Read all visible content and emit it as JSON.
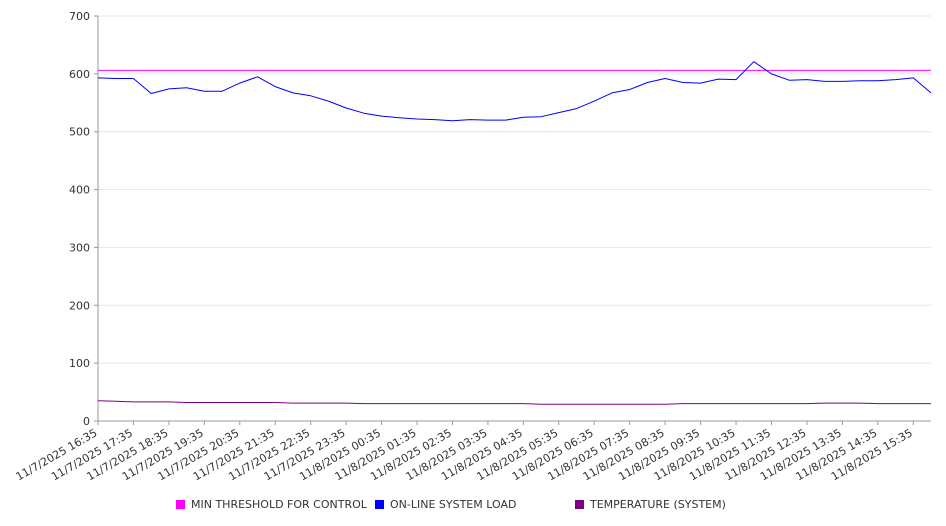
{
  "chart_data": {
    "type": "line",
    "grid": true,
    "legend_placement": "bottom",
    "ylim": [
      0,
      700
    ],
    "y_ticks": [
      "0",
      "100",
      "200",
      "300",
      "400",
      "500",
      "600",
      "700"
    ],
    "x_ticks": [
      "11/7/2025 16:35",
      "11/7/2025 17:35",
      "11/7/2025 18:35",
      "11/7/2025 19:35",
      "11/7/2025 20:35",
      "11/7/2025 21:35",
      "11/7/2025 22:35",
      "11/7/2025 23:35",
      "11/8/2025 00:35",
      "11/8/2025 01:35",
      "11/8/2025 02:35",
      "11/8/2025 03:35",
      "11/8/2025 04:35",
      "11/8/2025 05:35",
      "11/8/2025 06:35",
      "11/8/2025 07:35",
      "11/8/2025 08:35",
      "11/8/2025 09:35",
      "11/8/2025 10:35",
      "11/8/2025 11:35",
      "11/8/2025 12:35",
      "11/8/2025 13:35",
      "11/8/2025 14:35",
      "11/8/2025 15:35"
    ],
    "x": [
      "11/7/2025 16:35",
      "11/7/2025 17:05",
      "11/7/2025 17:35",
      "11/7/2025 18:05",
      "11/7/2025 18:35",
      "11/7/2025 19:05",
      "11/7/2025 19:35",
      "11/7/2025 20:05",
      "11/7/2025 20:35",
      "11/7/2025 21:05",
      "11/7/2025 21:35",
      "11/7/2025 22:05",
      "11/7/2025 22:35",
      "11/7/2025 23:05",
      "11/7/2025 23:35",
      "11/8/2025 00:05",
      "11/8/2025 00:35",
      "11/8/2025 01:05",
      "11/8/2025 01:35",
      "11/8/2025 02:05",
      "11/8/2025 02:35",
      "11/8/2025 03:05",
      "11/8/2025 03:35",
      "11/8/2025 04:05",
      "11/8/2025 04:35",
      "11/8/2025 05:05",
      "11/8/2025 05:35",
      "11/8/2025 06:05",
      "11/8/2025 06:35",
      "11/8/2025 07:05",
      "11/8/2025 07:35",
      "11/8/2025 08:05",
      "11/8/2025 08:35",
      "11/8/2025 09:05",
      "11/8/2025 09:35",
      "11/8/2025 10:05",
      "11/8/2025 10:35",
      "11/8/2025 11:05",
      "11/8/2025 11:35",
      "11/8/2025 12:05",
      "11/8/2025 12:35",
      "11/8/2025 13:05",
      "11/8/2025 13:35",
      "11/8/2025 14:05",
      "11/8/2025 14:35",
      "11/8/2025 15:05",
      "11/8/2025 15:35",
      "11/8/2025 16:05"
    ],
    "series": [
      {
        "name": "MIN THRESHOLD FOR CONTROL",
        "color": "#ff00ff",
        "values": [
          606,
          606,
          606,
          606,
          606,
          606,
          606,
          606,
          606,
          606,
          606,
          606,
          606,
          606,
          606,
          606,
          606,
          606,
          606,
          606,
          606,
          606,
          606,
          606,
          606,
          606,
          606,
          606,
          606,
          606,
          606,
          606,
          606,
          606,
          606,
          606,
          606,
          606,
          606,
          606,
          606,
          606,
          606,
          606,
          606,
          606,
          606,
          606
        ]
      },
      {
        "name": "ON-LINE SYSTEM LOAD",
        "color": "#0000ff",
        "values": [
          593,
          592,
          592,
          566,
          574,
          576,
          570,
          570,
          584,
          595,
          578,
          567,
          562,
          553,
          541,
          532,
          527,
          524,
          522,
          521,
          519,
          521,
          520,
          520,
          525,
          526,
          533,
          540,
          553,
          567,
          573,
          585,
          592,
          585,
          584,
          591,
          590,
          621,
          600,
          589,
          590,
          587,
          587,
          588,
          588,
          590,
          593,
          567
        ]
      },
      {
        "name": "TEMPERATURE (SYSTEM)",
        "color": "#800080",
        "values": [
          35,
          34,
          33,
          33,
          33,
          32,
          32,
          32,
          32,
          32,
          32,
          31,
          31,
          31,
          31,
          30,
          30,
          30,
          30,
          30,
          30,
          30,
          30,
          30,
          30,
          29,
          29,
          29,
          29,
          29,
          29,
          29,
          29,
          30,
          30,
          30,
          30,
          30,
          30,
          30,
          30,
          31,
          31,
          31,
          30,
          30,
          30,
          30
        ]
      }
    ]
  }
}
